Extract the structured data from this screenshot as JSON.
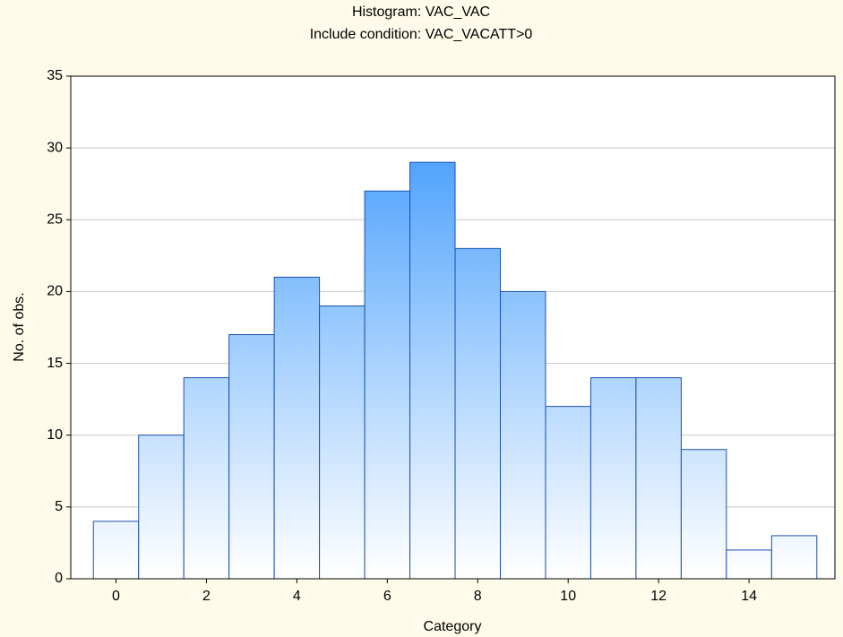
{
  "chart_data": {
    "type": "histogram",
    "title": "Histogram: VAC_VAC",
    "subtitle": "Include condition: VAC_VACATT>0",
    "x_label": "Category",
    "y_label": "No. of obs.",
    "bins": [
      -0.5,
      0.5,
      1.5,
      2.5,
      3.5,
      4.5,
      5.5,
      6.5,
      7.5,
      8.5,
      9.5,
      10.5,
      11.5,
      12.5,
      13.5,
      14.5,
      15.5
    ],
    "values": [
      4,
      10,
      14,
      17,
      21,
      19,
      27,
      29,
      23,
      20,
      12,
      14,
      14,
      9,
      2,
      3
    ],
    "color": "#2a8ffc",
    "xlim": [
      -1,
      15.9
    ],
    "xticks": [
      0,
      2,
      4,
      6,
      8,
      10,
      12,
      14
    ],
    "ylim": [
      0,
      35
    ],
    "yticks": [
      0,
      5,
      10,
      15,
      20,
      25,
      30,
      35
    ],
    "grid": true
  }
}
